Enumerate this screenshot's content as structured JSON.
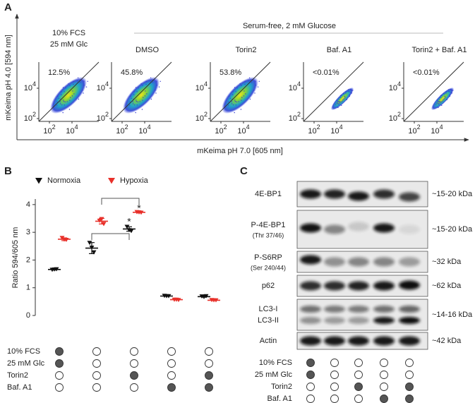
{
  "panel_a": {
    "label": "A",
    "group_header": "Serum-free, 2 mM Glucose",
    "y_axis_label": "mKeima pH 4.0 [594 nm]",
    "x_axis_label": "mKeima pH 7.0 [605 nm]",
    "tick_base": "10",
    "tick_exponents": [
      "2",
      "4"
    ],
    "plots": [
      {
        "title": [
          "10% FCS",
          "25 mM Glc"
        ],
        "percentage": "12.5%"
      },
      {
        "title": [
          "DMSO"
        ],
        "percentage": "45.8%"
      },
      {
        "title": [
          "Torin2"
        ],
        "percentage": "53.8%"
      },
      {
        "title": [
          "Baf. A1"
        ],
        "percentage": "<0.01%"
      },
      {
        "title": [
          "Torin2 + Baf. A1"
        ],
        "percentage": "<0.01%"
      }
    ]
  },
  "chart_data": {
    "type": "dot",
    "label": "B",
    "y_axis_label": "Ratio 594/605 nm",
    "categories": [
      null,
      null,
      null,
      null,
      null
    ],
    "ylim": [
      0,
      4.2
    ],
    "yticks": [
      0,
      1,
      2,
      3,
      4
    ],
    "grid": false,
    "series": [
      {
        "name": "Normoxia",
        "color": "#111111",
        "values": [
          1.66,
          2.43,
          3.12,
          0.7,
          0.68
        ],
        "errors": [
          0.02,
          0.2,
          0.08,
          0.01,
          0.02
        ],
        "points": [
          [
            1.65,
            1.66,
            1.67
          ],
          [
            2.62,
            2.45,
            2.28
          ],
          [
            3.2,
            3.08,
            3.05
          ],
          [
            0.71,
            0.7,
            0.7
          ],
          [
            0.69,
            0.67,
            0.7
          ]
        ]
      },
      {
        "name": "Hypoxia",
        "color": "#e8302a",
        "values": [
          2.75,
          3.4,
          3.72,
          0.57,
          0.55
        ],
        "errors": [
          0.05,
          0.1,
          0.02,
          0.01,
          0.01
        ],
        "points": [
          [
            2.8,
            2.74,
            2.73
          ],
          [
            3.42,
            3.48,
            3.3
          ],
          [
            3.73,
            3.72,
            3.71
          ],
          [
            0.57,
            0.57,
            0.56
          ],
          [
            0.56,
            0.55,
            0.55
          ]
        ]
      }
    ],
    "annotations": [
      "*",
      "*"
    ],
    "conditions": {
      "labels": [
        "10% FCS",
        "25 mM Glc",
        "Torin2",
        "Baf. A1"
      ],
      "values": [
        [
          1,
          0,
          0,
          0,
          0
        ],
        [
          1,
          0,
          0,
          0,
          0
        ],
        [
          0,
          0,
          1,
          0,
          1
        ],
        [
          0,
          0,
          0,
          1,
          1
        ]
      ]
    }
  },
  "panel_c": {
    "label": "C",
    "blots": [
      {
        "label": [
          "4E-BP1"
        ],
        "size": "~15-20 kDa"
      },
      {
        "label": [
          "P-4E-BP1"
        ],
        "detail": "(Thr 37/46)",
        "size": "~15-20 kDa"
      },
      {
        "label": [
          "P-S6RP"
        ],
        "detail": "(Ser 240/44)",
        "size": "~32 kDa"
      },
      {
        "label": [
          "p62"
        ],
        "size": "~62 kDa"
      },
      {
        "label": [
          "LC3-I",
          "LC3-II"
        ],
        "size": "~14-16 kDa"
      },
      {
        "label": [
          "Actin"
        ],
        "size": "~42 kDa"
      }
    ],
    "conditions": {
      "labels": [
        "10% FCS",
        "25 mM Glc",
        "Torin2",
        "Baf. A1"
      ],
      "values": [
        [
          1,
          0,
          0,
          0,
          0
        ],
        [
          1,
          0,
          0,
          0,
          0
        ],
        [
          0,
          0,
          1,
          0,
          1
        ],
        [
          0,
          0,
          0,
          1,
          1
        ]
      ]
    }
  }
}
